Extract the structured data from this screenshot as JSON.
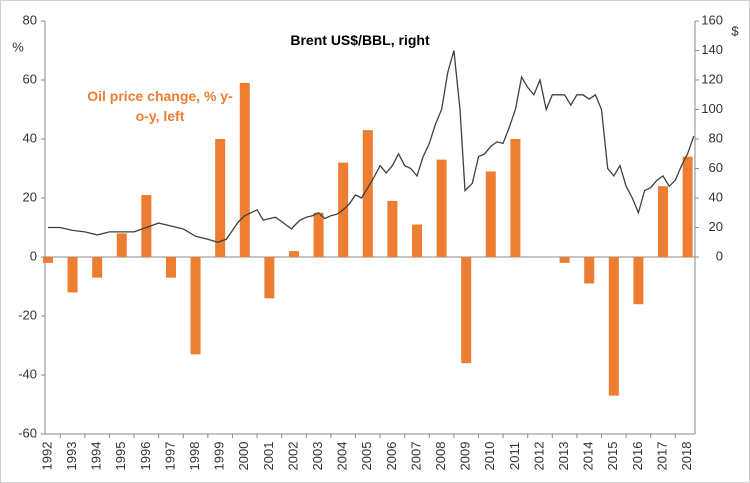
{
  "chart_data": {
    "type": "bar",
    "categories": [
      "1992",
      "1993",
      "1994",
      "1995",
      "1996",
      "1997",
      "1998",
      "1999",
      "2000",
      "2001",
      "2002",
      "2003",
      "2004",
      "2005",
      "2006",
      "2007",
      "2008",
      "2009",
      "2010",
      "2011",
      "2012",
      "2013",
      "2014",
      "2015",
      "2016",
      "2017",
      "2018"
    ],
    "xlim": [
      1991.88,
      2018.3
    ],
    "ylabel": "%",
    "y2label": "$",
    "ylim": [
      -60,
      80
    ],
    "yticks": [
      -60,
      -40,
      -20,
      0,
      20,
      40,
      60,
      80
    ],
    "y2lim": [
      -120,
      160
    ],
    "y2ticks": [
      0,
      20,
      40,
      60,
      80,
      100,
      120,
      140,
      160
    ],
    "series": [
      {
        "name": "Oil price change, % y-o-y, left",
        "type": "bar",
        "color": "#ed7d31",
        "values": [
          -2,
          -12,
          -7,
          8,
          21,
          -7,
          -33,
          40,
          59,
          -14,
          2,
          15,
          32,
          43,
          19,
          11,
          33,
          -36,
          29,
          40,
          0,
          -2,
          -9,
          -47,
          -16,
          24,
          34
        ]
      },
      {
        "name": "Brent US$/BBL, right",
        "type": "line",
        "axis": "y2",
        "color": "#404040",
        "x": [
          1992,
          1992.5,
          1993,
          1993.5,
          1994,
          1994.5,
          1995,
          1995.5,
          1996,
          1996.5,
          1997,
          1997.5,
          1998,
          1998.5,
          1998.9,
          1999.25,
          1999.5,
          1999.75,
          2000,
          2000.25,
          2000.5,
          2000.75,
          2001,
          2001.25,
          2001.5,
          2001.9,
          2002,
          2002.25,
          2002.5,
          2002.75,
          2003,
          2003.25,
          2003.5,
          2003.75,
          2004,
          2004.25,
          2004.5,
          2004.75,
          2005,
          2005.25,
          2005.5,
          2005.75,
          2006,
          2006.25,
          2006.5,
          2006.75,
          2007,
          2007.25,
          2007.5,
          2007.75,
          2008,
          2008.25,
          2008.5,
          2008.75,
          2008.95,
          2009.25,
          2009.5,
          2009.75,
          2010,
          2010.25,
          2010.5,
          2010.75,
          2011,
          2011.25,
          2011.5,
          2011.75,
          2012,
          2012.25,
          2012.5,
          2012.75,
          2013,
          2013.25,
          2013.5,
          2013.75,
          2014,
          2014.25,
          2014.5,
          2014.75,
          2015,
          2015.25,
          2015.5,
          2015.75,
          2016,
          2016.25,
          2016.5,
          2016.75,
          2017,
          2017.25,
          2017.5,
          2017.75,
          2018,
          2018.25
        ],
        "values": [
          20,
          20,
          18,
          17,
          15,
          17,
          17,
          17,
          20,
          23,
          21,
          19,
          14,
          12,
          10,
          12,
          18,
          24,
          28,
          30,
          32,
          25,
          26,
          27,
          24,
          19,
          21,
          25,
          27,
          28,
          30,
          26,
          28,
          29,
          32,
          36,
          42,
          40,
          47,
          54,
          62,
          57,
          62,
          70,
          62,
          60,
          55,
          68,
          77,
          90,
          100,
          125,
          140,
          100,
          45,
          50,
          68,
          70,
          75,
          78,
          77,
          88,
          100,
          122,
          115,
          110,
          120,
          100,
          110,
          110,
          110,
          103,
          110,
          110,
          107,
          110,
          100,
          60,
          55,
          62,
          48,
          40,
          30,
          45,
          47,
          52,
          55,
          48,
          52,
          62,
          70,
          82
        ]
      }
    ]
  }
}
